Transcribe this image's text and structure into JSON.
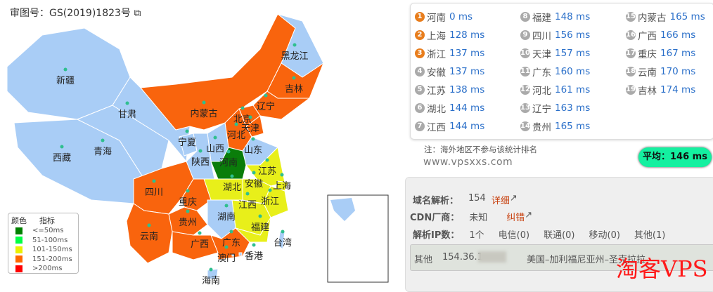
{
  "map": {
    "audit_number": "审图号：GS(2019)1823号",
    "provinces": [
      {
        "name": "新疆",
        "latency_class": "none"
      },
      {
        "name": "西藏",
        "latency_class": "none"
      },
      {
        "name": "青海",
        "latency_class": "none"
      },
      {
        "name": "甘肃",
        "latency_class": "none"
      },
      {
        "name": "内蒙古",
        "latency_class": "151-200"
      },
      {
        "name": "黑龙江",
        "latency_class": "none"
      },
      {
        "name": "吉林",
        "latency_class": "151-200"
      },
      {
        "name": "辽宁",
        "latency_class": "151-200"
      },
      {
        "name": "北京",
        "latency_class": "151-200"
      },
      {
        "name": "天津",
        "latency_class": "151-200"
      },
      {
        "name": "河北",
        "latency_class": "151-200"
      },
      {
        "name": "山西",
        "latency_class": "none"
      },
      {
        "name": "山东",
        "latency_class": "none"
      },
      {
        "name": "宁夏",
        "latency_class": "none"
      },
      {
        "name": "陕西",
        "latency_class": "none"
      },
      {
        "name": "河南",
        "latency_class": "<=50"
      },
      {
        "name": "江苏",
        "latency_class": "101-150"
      },
      {
        "name": "安徽",
        "latency_class": "101-150"
      },
      {
        "name": "上海",
        "latency_class": "101-150"
      },
      {
        "name": "湖北",
        "latency_class": "101-150"
      },
      {
        "name": "四川",
        "latency_class": "151-200"
      },
      {
        "name": "重庆",
        "latency_class": "151-200"
      },
      {
        "name": "浙江",
        "latency_class": "101-150"
      },
      {
        "name": "江西",
        "latency_class": "101-150"
      },
      {
        "name": "湖南",
        "latency_class": "none"
      },
      {
        "name": "贵州",
        "latency_class": "151-200"
      },
      {
        "name": "福建",
        "latency_class": "101-150"
      },
      {
        "name": "云南",
        "latency_class": "151-200"
      },
      {
        "name": "广西",
        "latency_class": "151-200"
      },
      {
        "name": "广东",
        "latency_class": "151-200"
      },
      {
        "name": "台湾",
        "latency_class": "none"
      },
      {
        "name": "澳门",
        "latency_class": "none"
      },
      {
        "name": "香港",
        "latency_class": "none"
      },
      {
        "name": "海南",
        "latency_class": "none"
      }
    ],
    "legend": {
      "color_header": "颜色",
      "metric_header": "指标",
      "items": [
        {
          "label": "<=50ms",
          "color": "#008000"
        },
        {
          "label": "51-100ms",
          "color": "#00ff44"
        },
        {
          "label": "101-150ms",
          "color": "#eaf000"
        },
        {
          "label": "151-200ms",
          "color": "#ff6600"
        },
        {
          "label": ">200ms",
          "color": "#ff0000"
        }
      ]
    },
    "colors": {
      "none": "#a9cdf6",
      "<=50": "#0a7d0a",
      "101-150": "#e8ef1a",
      "151-200": "#f9640d"
    }
  },
  "ranking": [
    {
      "rank": "1",
      "name": "河南",
      "ms": "0 ms"
    },
    {
      "rank": "2",
      "name": "上海",
      "ms": "128 ms"
    },
    {
      "rank": "3",
      "name": "浙江",
      "ms": "137 ms"
    },
    {
      "rank": "4",
      "name": "安徽",
      "ms": "137 ms"
    },
    {
      "rank": "5",
      "name": "江苏",
      "ms": "138 ms"
    },
    {
      "rank": "6",
      "name": "湖北",
      "ms": "144 ms"
    },
    {
      "rank": "7",
      "name": "江西",
      "ms": "144 ms"
    },
    {
      "rank": "8",
      "name": "福建",
      "ms": "148 ms"
    },
    {
      "rank": "9",
      "name": "四川",
      "ms": "156 ms"
    },
    {
      "rank": "10",
      "name": "天津",
      "ms": "157 ms"
    },
    {
      "rank": "11",
      "name": "广东",
      "ms": "160 ms"
    },
    {
      "rank": "12",
      "name": "河北",
      "ms": "161 ms"
    },
    {
      "rank": "13",
      "name": "辽宁",
      "ms": "163 ms"
    },
    {
      "rank": "14",
      "name": "贵州",
      "ms": "165 ms"
    },
    {
      "rank": "15",
      "name": "内蒙古",
      "ms": "165 ms"
    },
    {
      "rank": "16",
      "name": "广西",
      "ms": "166 ms"
    },
    {
      "rank": "17",
      "name": "重庆",
      "ms": "167 ms"
    },
    {
      "rank": "18",
      "name": "云南",
      "ms": "170 ms"
    },
    {
      "rank": "19",
      "name": "吉林",
      "ms": "174 ms"
    }
  ],
  "note": "注：海外地区不参与该统计排名",
  "site": "www.vpsxxs.com",
  "average": "平均：146 ms",
  "dns": {
    "resolve_label": "域名解析：",
    "resolve_value": "154",
    "detail_link": "详细",
    "cdn_label": "CDN厂商：",
    "cdn_value": "未知",
    "report_link": "纠错",
    "ipcount_label": "解析IP数：",
    "ipcount_value": "1个",
    "telecom": "电信(0)",
    "unicom": "联通(0)",
    "mobile": "移动(0)",
    "other": "其他(1)",
    "ip_row": {
      "type": "其他",
      "ip": "154.36.1",
      "location": "美国–加利福尼亚州–圣克拉拉"
    }
  },
  "watermark": "淘客VPS"
}
